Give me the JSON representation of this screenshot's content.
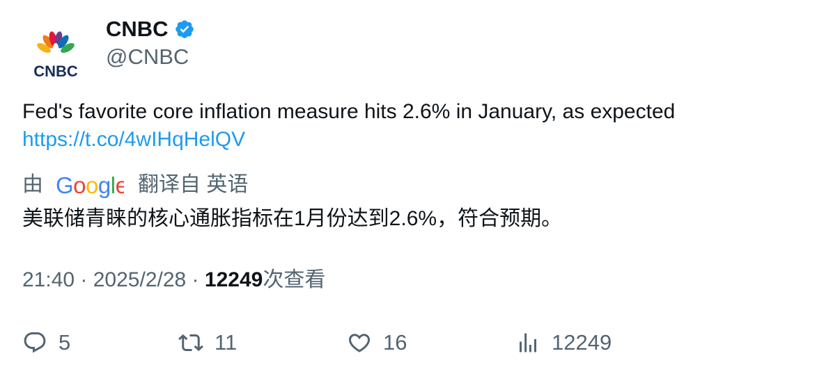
{
  "author": {
    "display_name": "CNBC",
    "handle": "@CNBC",
    "avatar_text": "CNBC",
    "verified_icon": "verified-badge-icon"
  },
  "tweet": {
    "text": "Fed's favorite core inflation measure hits 2.6% in January, as expected",
    "link": "https://t.co/4wIHqHelQV"
  },
  "translation": {
    "prefix": "由",
    "provider": "Google",
    "suffix": "翻译自 英语",
    "text": "美联储青睐的核心通胀指标在1月份达到2.6%，符合预期。"
  },
  "meta": {
    "time": "21:40",
    "separator": " · ",
    "date": "2025/2/28",
    "views_count": "12249",
    "views_label": "次查看"
  },
  "actions": {
    "replies": "5",
    "retweets": "11",
    "likes": "16",
    "views": "12249"
  },
  "colors": {
    "link": "#1d9bf0",
    "secondary_text": "#536471",
    "primary_text": "#0f1419",
    "verified": "#1d9bf0"
  }
}
